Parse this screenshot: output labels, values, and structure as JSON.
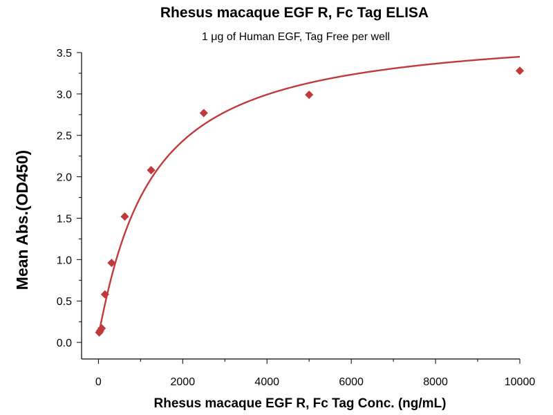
{
  "chart_data": {
    "type": "scatter",
    "title": "Rhesus macaque EGF R, Fc Tag ELISA",
    "subtitle": "1 μg of Human EGF, Tag Free per well",
    "xlabel": "Rhesus macaque EGF R, Fc Tag Conc. (ng/mL)",
    "ylabel": "Mean Abs.(OD450)",
    "xlim": [
      -400,
      10000
    ],
    "ylim": [
      -0.2,
      3.5
    ],
    "x_ticks": [
      0,
      2000,
      4000,
      6000,
      8000,
      10000
    ],
    "x_tick_labels": [
      "0",
      "2000",
      "4000",
      "6000",
      "8000",
      "10000"
    ],
    "x_minor_ticks": [
      1000,
      3000,
      5000,
      7000,
      9000
    ],
    "y_ticks": [
      0.0,
      0.5,
      1.0,
      1.5,
      2.0,
      2.5,
      3.0,
      3.5
    ],
    "y_tick_labels": [
      "0.0",
      "0.5",
      "1.0",
      "1.5",
      "2.0",
      "2.5",
      "3.0",
      "3.5"
    ],
    "y_minor_ticks": [
      0.25,
      0.75,
      1.25,
      1.75,
      2.25,
      2.75,
      3.25
    ],
    "grid": false,
    "colors": {
      "series": "#c0393b",
      "axis": "#000000"
    },
    "series": [
      {
        "marker": "diamond",
        "x": [
          19.5,
          39,
          78,
          156,
          312.5,
          625,
          1250,
          2500,
          5000,
          10000
        ],
        "y": [
          0.12,
          0.14,
          0.17,
          0.58,
          0.96,
          1.52,
          2.08,
          2.77,
          2.99,
          3.28
        ],
        "fit": "four-parameter logistic"
      }
    ]
  }
}
